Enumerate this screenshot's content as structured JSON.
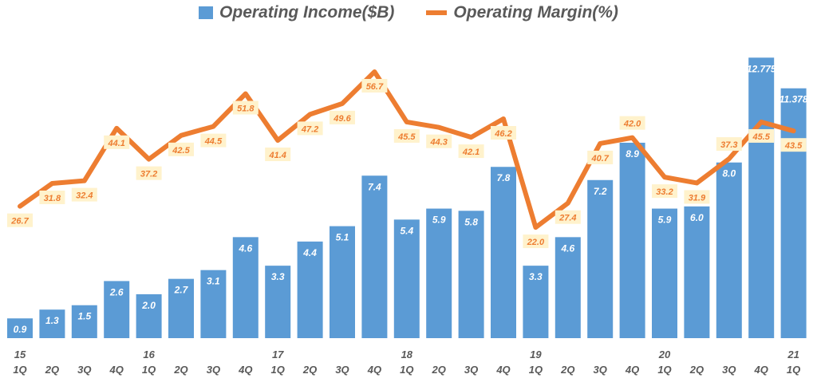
{
  "chart_data": {
    "type": "bar+line",
    "title": "",
    "legend_position": "top",
    "grid": false,
    "categories": [
      "1Q",
      "2Q",
      "3Q",
      "4Q",
      "1Q",
      "2Q",
      "3Q",
      "4Q",
      "1Q",
      "2Q",
      "3Q",
      "4Q",
      "1Q",
      "2Q",
      "3Q",
      "4Q",
      "1Q",
      "2Q",
      "3Q",
      "4Q",
      "1Q",
      "2Q",
      "3Q",
      "4Q",
      "1Q"
    ],
    "year_labels": [
      "15",
      "",
      "",
      "",
      "16",
      "",
      "",
      "",
      "17",
      "",
      "",
      "",
      "18",
      "",
      "",
      "",
      "19",
      "",
      "",
      "",
      "20",
      "",
      "",
      "",
      "21"
    ],
    "series": [
      {
        "name": "Operating Income($B)",
        "type": "bar",
        "color": "#5B9BD5",
        "ylim": [
          0,
          15.4
        ],
        "values": [
          0.9,
          1.3,
          1.5,
          2.6,
          2.0,
          2.7,
          3.1,
          4.6,
          3.3,
          4.4,
          5.1,
          7.4,
          5.4,
          5.9,
          5.8,
          7.8,
          3.3,
          4.6,
          7.2,
          8.9,
          5.9,
          6.0,
          8.0,
          12.775,
          11.378
        ],
        "labels": [
          "0.9",
          "1.3",
          "1.5",
          "2.6",
          "2.0",
          "2.7",
          "3.1",
          "4.6",
          "3.3",
          "4.4",
          "5.1",
          "7.4",
          "5.4",
          "5.9",
          "5.8",
          "7.8",
          "3.3",
          "4.6",
          "7.2",
          "8.9",
          "5.9",
          "6.0",
          "8.0",
          "12.775",
          "11.378"
        ]
      },
      {
        "name": "Operating Margin(%)",
        "type": "line",
        "color": "#ED7D31",
        "ylim": [
          -2.7,
          72.7
        ],
        "values": [
          26.7,
          31.8,
          32.4,
          44.1,
          37.2,
          42.5,
          44.5,
          51.8,
          41.4,
          47.2,
          49.6,
          56.7,
          45.5,
          44.3,
          42.1,
          46.2,
          22.0,
          27.4,
          40.7,
          42.0,
          33.2,
          31.9,
          37.3,
          45.5,
          43.5
        ],
        "labels": [
          "26.7",
          "31.8",
          "32.4",
          "44.1",
          "37.2",
          "42.5",
          "44.5",
          "51.8",
          "41.4",
          "47.2",
          "49.6",
          "56.7",
          "45.5",
          "44.3",
          "42.1",
          "46.2",
          "22.0",
          "27.4",
          "40.7",
          "42.0",
          "33.2",
          "31.9",
          "37.3",
          "45.5",
          "43.5"
        ]
      }
    ]
  }
}
